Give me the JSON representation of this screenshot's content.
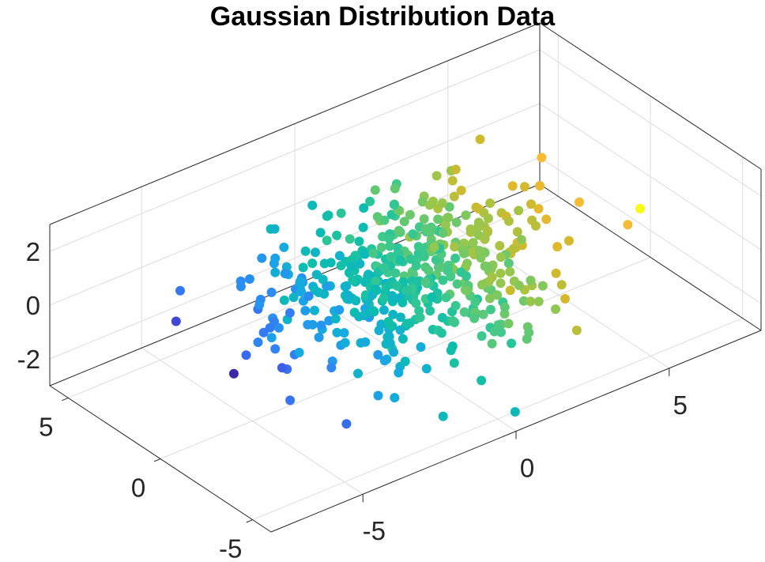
{
  "chart_data": {
    "type": "scatter",
    "title": "Gaussian Distribution Data",
    "xlabel": "",
    "ylabel": "",
    "zlabel": "",
    "xlim": [
      -8,
      8
    ],
    "ylim": [
      -6,
      6
    ],
    "zlim": [
      -3,
      3
    ],
    "x_ticks": [
      -5,
      0,
      5
    ],
    "y_ticks": [
      -5,
      0,
      5
    ],
    "z_ticks": [
      -2,
      0,
      2
    ],
    "x_tick_labels": [
      "-5",
      "0",
      "5"
    ],
    "y_tick_labels": [
      "-5",
      "0",
      "5"
    ],
    "z_tick_labels": [
      "-2",
      "0",
      "2"
    ],
    "grid": true,
    "box": true,
    "colormap": "parula",
    "color_by": "x",
    "colormap_stops": [
      "#3e26a8",
      "#4253e6",
      "#2f87f5",
      "#17a9e2",
      "#0bbdad",
      "#40c98b",
      "#95c74e",
      "#dab728",
      "#fbbd38",
      "#f9fb15"
    ],
    "points_note_skip": true,
    "points": []
  }
}
